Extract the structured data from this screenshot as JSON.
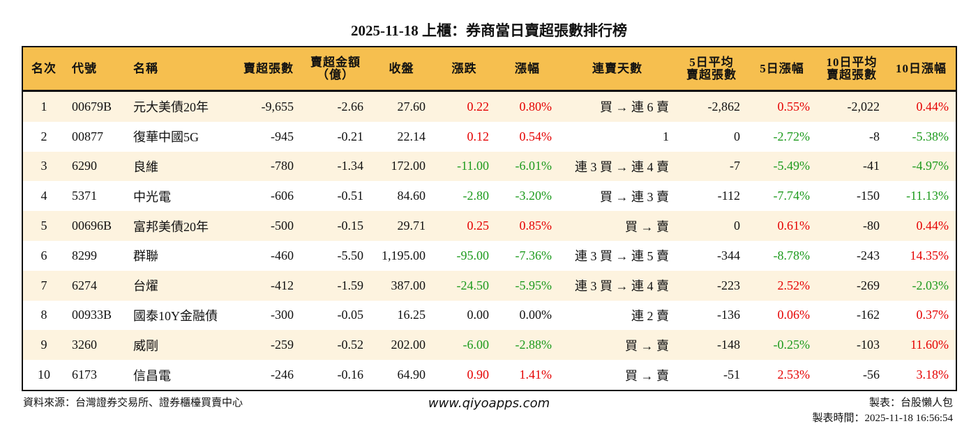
{
  "title": "2025-11-18 上櫃：券商當日賣超張數排行榜",
  "colors": {
    "header_bg": "#F6BF4F",
    "odd_row_bg": "#FDF3DF",
    "up": "#e50000",
    "down": "#1c9a1c"
  },
  "columns": [
    "名次",
    "代號",
    "名稱",
    "賣超張數",
    "賣超金額\n（億）",
    "收盤",
    "漲跌",
    "漲幅",
    "連賣天數",
    "5日平均\n賣超張數",
    "5日漲幅",
    "10日平均\n賣超張數",
    "10日漲幅"
  ],
  "rows": [
    [
      "1",
      "00679B",
      "元大美債20年",
      "-9,655",
      "-2.66",
      "27.60",
      "0.22",
      "0.80%",
      "買 → 連 6 賣",
      "-2,862",
      "0.55%",
      "-2,022",
      "0.44%"
    ],
    [
      "2",
      "00877",
      "復華中國5G",
      "-945",
      "-0.21",
      "22.14",
      "0.12",
      "0.54%",
      "1",
      "0",
      "-2.72%",
      "-8",
      "-5.38%"
    ],
    [
      "3",
      "6290",
      "良維",
      "-780",
      "-1.34",
      "172.00",
      "-11.00",
      "-6.01%",
      "連 3 買 → 連 4 賣",
      "-7",
      "-5.49%",
      "-41",
      "-4.97%"
    ],
    [
      "4",
      "5371",
      "中光電",
      "-606",
      "-0.51",
      "84.60",
      "-2.80",
      "-3.20%",
      "買 → 連 3 賣",
      "-112",
      "-7.74%",
      "-150",
      "-11.13%"
    ],
    [
      "5",
      "00696B",
      "富邦美債20年",
      "-500",
      "-0.15",
      "29.71",
      "0.25",
      "0.85%",
      "買 → 賣",
      "0",
      "0.61%",
      "-80",
      "0.44%"
    ],
    [
      "6",
      "8299",
      "群聯",
      "-460",
      "-5.50",
      "1,195.00",
      "-95.00",
      "-7.36%",
      "連 3 買 → 連 5 賣",
      "-344",
      "-8.78%",
      "-243",
      "14.35%"
    ],
    [
      "7",
      "6274",
      "台燿",
      "-412",
      "-1.59",
      "387.00",
      "-24.50",
      "-5.95%",
      "連 3 買 → 連 4 賣",
      "-223",
      "2.52%",
      "-269",
      "-2.03%"
    ],
    [
      "8",
      "00933B",
      "國泰10Y金融債",
      "-300",
      "-0.05",
      "16.25",
      "0.00",
      "0.00%",
      "連 2 賣",
      "-136",
      "0.06%",
      "-162",
      "0.37%"
    ],
    [
      "9",
      "3260",
      "威剛",
      "-259",
      "-0.52",
      "202.00",
      "-6.00",
      "-2.88%",
      "買 → 賣",
      "-148",
      "-0.25%",
      "-103",
      "11.60%"
    ],
    [
      "10",
      "6173",
      "信昌電",
      "-246",
      "-0.16",
      "64.90",
      "0.90",
      "1.41%",
      "買 → 賣",
      "-51",
      "2.53%",
      "-56",
      "3.18%"
    ]
  ],
  "footer": {
    "source": "資料來源：台灣證券交易所、證券櫃檯買賣中心",
    "website": "www.qiyoapps.com",
    "author": "製表：台股懶人包",
    "time": "製表時間：2025-11-18 16:56:54"
  }
}
